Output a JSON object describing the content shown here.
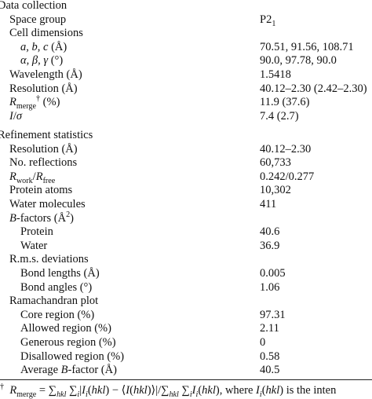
{
  "sections": [
    {
      "title": "Data collection",
      "rows": [
        {
          "label": [
            "Space group"
          ],
          "value": [
            "P2",
            {
              "t": "1",
              "s": "sub"
            }
          ]
        },
        {
          "label": [
            "Cell dimensions"
          ],
          "children": [
            {
              "label": [
                {
                  "t": "a",
                  "s": "i"
                },
                ", ",
                {
                  "t": "b",
                  "s": "i"
                },
                ", ",
                {
                  "t": "c",
                  "s": "i"
                },
                " (Å)"
              ],
              "value": [
                "70.51, 91.56, 108.71"
              ]
            },
            {
              "label": [
                {
                  "t": "α",
                  "s": "i"
                },
                ", ",
                {
                  "t": "β",
                  "s": "i"
                },
                ", ",
                {
                  "t": "γ",
                  "s": "i"
                },
                " (°)"
              ],
              "value": [
                "90.0, 97.78, 90.0"
              ]
            }
          ]
        },
        {
          "label": [
            "Wavelength (Å)"
          ],
          "value": [
            "1.5418"
          ]
        },
        {
          "label": [
            "Resolution (Å)"
          ],
          "value": [
            "40.12–2.30 (2.42–2.30)"
          ]
        },
        {
          "label": [
            {
              "t": "R",
              "s": "i"
            },
            {
              "t": "merge",
              "s": "sub"
            },
            {
              "t": "†",
              "s": "sup"
            },
            " (%)"
          ],
          "value": [
            "11.9 (37.6)"
          ]
        },
        {
          "label": [
            {
              "t": "I",
              "s": "i"
            },
            "/",
            {
              "t": "σ",
              "s": "i"
            }
          ],
          "value": [
            "7.4 (2.7)"
          ]
        }
      ]
    },
    {
      "title": "Refinement statistics",
      "rows": [
        {
          "label": [
            "Resolution (Å)"
          ],
          "value": [
            "40.12–2.30"
          ]
        },
        {
          "label": [
            "No. reflections"
          ],
          "value": [
            "60,733"
          ]
        },
        {
          "label": [
            {
              "t": "R",
              "s": "i"
            },
            {
              "t": "work",
              "s": "sub"
            },
            "/",
            {
              "t": "R",
              "s": "i"
            },
            {
              "t": "free",
              "s": "sub"
            }
          ],
          "value": [
            "0.242/0.277"
          ]
        },
        {
          "label": [
            "Protein atoms"
          ],
          "value": [
            "10,302"
          ]
        },
        {
          "label": [
            "Water molecules"
          ],
          "value": [
            "411"
          ]
        },
        {
          "label": [
            {
              "t": "B",
              "s": "i"
            },
            "-factors (Å",
            {
              "t": "2",
              "s": "sup"
            },
            ")"
          ],
          "children": [
            {
              "label": [
                "Protein"
              ],
              "value": [
                "40.6"
              ]
            },
            {
              "label": [
                "Water"
              ],
              "value": [
                "36.9"
              ]
            }
          ]
        },
        {
          "label": [
            "R.m.s. deviations"
          ],
          "children": [
            {
              "label": [
                "Bond lengths (Å)"
              ],
              "value": [
                "0.005"
              ]
            },
            {
              "label": [
                "Bond angles (°)"
              ],
              "value": [
                "1.06"
              ]
            }
          ]
        },
        {
          "label": [
            "Ramachandran plot"
          ],
          "children": [
            {
              "label": [
                "Core region (%)"
              ],
              "value": [
                "97.31"
              ]
            },
            {
              "label": [
                "Allowed region (%)"
              ],
              "value": [
                "2.11"
              ]
            },
            {
              "label": [
                "Generous region (%)"
              ],
              "value": [
                "0"
              ]
            },
            {
              "label": [
                "Disallowed region (%)"
              ],
              "value": [
                "0.58"
              ]
            },
            {
              "label": [
                "Average ",
                {
                  "t": "B",
                  "s": "i"
                },
                "-factor (Å)"
              ],
              "value": [
                "40.5"
              ]
            }
          ]
        }
      ]
    }
  ],
  "footnote": [
    {
      "t": "†",
      "s": "sup"
    },
    "  ",
    {
      "t": "R",
      "s": "i"
    },
    {
      "t": "merge",
      "s": "sub"
    },
    " = ∑",
    {
      "t": "hkl",
      "s": "isub"
    },
    " ∑",
    {
      "t": "i",
      "s": "isub"
    },
    "|",
    {
      "t": "I",
      "s": "i"
    },
    {
      "t": "i",
      "s": "isub"
    },
    "(",
    {
      "t": "hkl",
      "s": "i"
    },
    ") − ⟨",
    {
      "t": "I",
      "s": "i"
    },
    "(",
    {
      "t": "hkl",
      "s": "i"
    },
    ")⟩|/∑",
    {
      "t": "hkl",
      "s": "isub"
    },
    " ∑",
    {
      "t": "i",
      "s": "isub"
    },
    {
      "t": "I",
      "s": "i"
    },
    {
      "t": "i",
      "s": "isub"
    },
    "(",
    {
      "t": "hkl",
      "s": "i"
    },
    "), where ",
    {
      "t": "I",
      "s": "i"
    },
    {
      "t": "i",
      "s": "isub"
    },
    "(",
    {
      "t": "hkl",
      "s": "i"
    },
    ") is the inten"
  ]
}
